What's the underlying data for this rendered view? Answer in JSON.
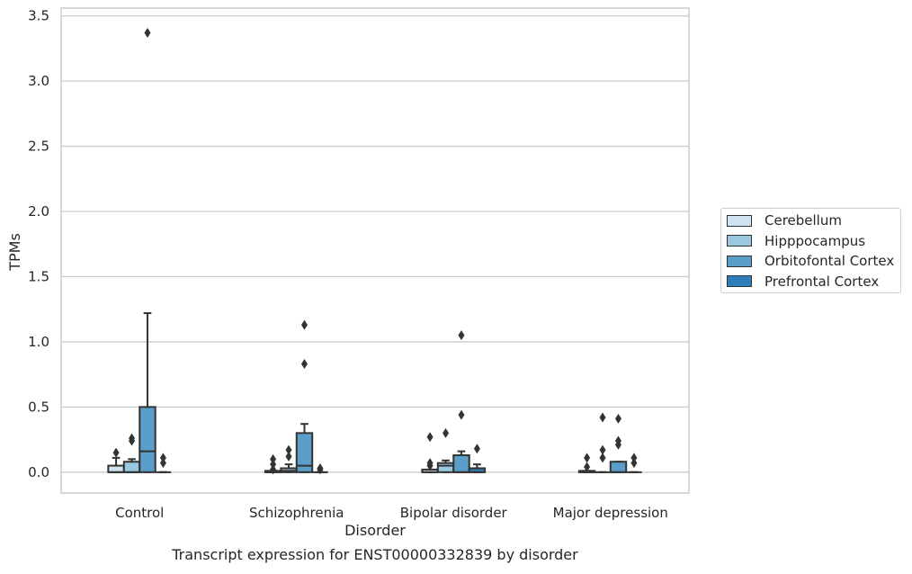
{
  "chart_data": {
    "type": "box",
    "title": "Transcript expression for ENST00000332839 by disorder",
    "xlabel": "Disorder",
    "ylabel": "TPMs",
    "ylim": [
      -0.16,
      3.56
    ],
    "yticks": [
      0.0,
      0.5,
      1.0,
      1.5,
      2.0,
      2.5,
      3.0,
      3.5
    ],
    "ytick_labels": [
      "0.0",
      "0.5",
      "1.0",
      "1.5",
      "2.0",
      "2.5",
      "3.0",
      "3.5"
    ],
    "grid": "horizontal",
    "legend_position": "right",
    "categories": [
      "Control",
      "Schizophrenia",
      "Bipolar disorder",
      "Major depression"
    ],
    "series": [
      {
        "name": "Cerebellum",
        "color": "#d1e2f0",
        "boxes": [
          {
            "q1": 0.0,
            "median": 0.0,
            "q3": 0.05,
            "whisker_low": 0.0,
            "whisker_high": 0.11,
            "outliers": [
              0.15
            ]
          },
          {
            "q1": 0.0,
            "median": 0.0,
            "q3": 0.01,
            "whisker_low": 0.0,
            "whisker_high": 0.01,
            "outliers": [
              0.02,
              0.06,
              0.1
            ]
          },
          {
            "q1": 0.0,
            "median": 0.0,
            "q3": 0.02,
            "whisker_low": 0.0,
            "whisker_high": 0.02,
            "outliers": [
              0.05,
              0.07,
              0.27
            ]
          },
          {
            "q1": 0.0,
            "median": 0.0,
            "q3": 0.01,
            "whisker_low": 0.0,
            "whisker_high": 0.01,
            "outliers": [
              0.04,
              0.11
            ]
          }
        ]
      },
      {
        "name": "Hipppocampus",
        "color": "#9ac8e0",
        "boxes": [
          {
            "q1": 0.0,
            "median": 0.0,
            "q3": 0.08,
            "whisker_low": 0.0,
            "whisker_high": 0.1,
            "outliers": [
              0.24,
              0.26
            ]
          },
          {
            "q1": 0.0,
            "median": 0.01,
            "q3": 0.03,
            "whisker_low": 0.0,
            "whisker_high": 0.06,
            "outliers": [
              0.12,
              0.17
            ]
          },
          {
            "q1": 0.0,
            "median": 0.05,
            "q3": 0.07,
            "whisker_low": 0.0,
            "whisker_high": 0.09,
            "outliers": [
              0.3
            ]
          },
          {
            "q1": 0.0,
            "median": 0.0,
            "q3": 0.0,
            "whisker_low": 0.0,
            "whisker_high": 0.0,
            "outliers": [
              0.11,
              0.17,
              0.42
            ]
          }
        ]
      },
      {
        "name": "Orbitofontal Cortex",
        "color": "#5a9ec9",
        "boxes": [
          {
            "q1": 0.0,
            "median": 0.16,
            "q3": 0.5,
            "whisker_low": 0.0,
            "whisker_high": 1.22,
            "outliers": [
              3.37
            ]
          },
          {
            "q1": 0.0,
            "median": 0.05,
            "q3": 0.3,
            "whisker_low": 0.0,
            "whisker_high": 0.37,
            "outliers": [
              0.83,
              1.13
            ]
          },
          {
            "q1": 0.0,
            "median": 0.0,
            "q3": 0.13,
            "whisker_low": 0.0,
            "whisker_high": 0.16,
            "outliers": [
              0.44,
              1.05
            ]
          },
          {
            "q1": 0.0,
            "median": 0.0,
            "q3": 0.08,
            "whisker_low": 0.0,
            "whisker_high": 0.08,
            "outliers": [
              0.21,
              0.24,
              0.41
            ]
          }
        ]
      },
      {
        "name": "Prefrontal Cortex",
        "color": "#2e7ebc",
        "boxes": [
          {
            "q1": 0.0,
            "median": 0.0,
            "q3": 0.0,
            "whisker_low": 0.0,
            "whisker_high": 0.0,
            "outliers": [
              0.07,
              0.11
            ]
          },
          {
            "q1": 0.0,
            "median": 0.0,
            "q3": 0.0,
            "whisker_low": 0.0,
            "whisker_high": 0.0,
            "outliers": [
              0.02,
              0.03
            ]
          },
          {
            "q1": 0.0,
            "median": 0.0,
            "q3": 0.03,
            "whisker_low": 0.0,
            "whisker_high": 0.06,
            "outliers": [
              0.18
            ]
          },
          {
            "q1": 0.0,
            "median": 0.0,
            "q3": 0.0,
            "whisker_low": 0.0,
            "whisker_high": 0.0,
            "outliers": [
              0.07,
              0.11
            ]
          }
        ]
      }
    ]
  }
}
